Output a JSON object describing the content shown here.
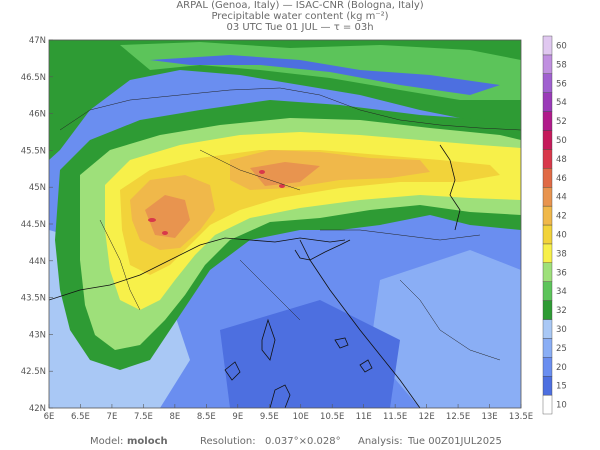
{
  "header": {
    "line1": "ARPAL (Genoa, Italy)  —  ISAC-CNR (Bologna, Italy)",
    "line2": "Precipitable water content (kg m⁻²)",
    "line3": "03 UTC Tue 01 JUL  —  τ = 03h"
  },
  "footer": {
    "model_label": "Model:",
    "model_value": "moloch",
    "resolution_label": "Resolution:",
    "resolution_value": "0.037°×0.028°",
    "analysis_label": "Analysis:",
    "analysis_value": "Tue 00Z01JUL2025"
  },
  "axes": {
    "lat_labels": [
      "47N",
      "46.5N",
      "46N",
      "45.5N",
      "45N",
      "44.5N",
      "44N",
      "43.5N",
      "43N",
      "42.5N",
      "42N"
    ],
    "lon_labels": [
      "6E",
      "6.5E",
      "7E",
      "7.5E",
      "8E",
      "8.5E",
      "9E",
      "9.5E",
      "10E",
      "10.5E",
      "11E",
      "11.5E",
      "12E",
      "12.5E",
      "13E",
      "13.5E"
    ]
  },
  "colorbar": {
    "labels": [
      "10",
      "15",
      "20",
      "25",
      "30",
      "32",
      "34",
      "36",
      "38",
      "40",
      "42",
      "44",
      "46",
      "48",
      "50",
      "52",
      "54",
      "56",
      "58",
      "60"
    ],
    "colors": [
      "#ffffff",
      "#4d6fe0",
      "#6a8ef0",
      "#8aaef5",
      "#a9c8f5",
      "#2e9b34",
      "#5cc45a",
      "#9ee07a",
      "#f7f04a",
      "#f2d33a",
      "#f0b84a",
      "#e8944f",
      "#e06a45",
      "#d8384a",
      "#c51a5a",
      "#b01a8a",
      "#9a3ab8",
      "#a060d0",
      "#c090e0",
      "#e0c8f0"
    ]
  },
  "watermark": "ARPAL"
}
